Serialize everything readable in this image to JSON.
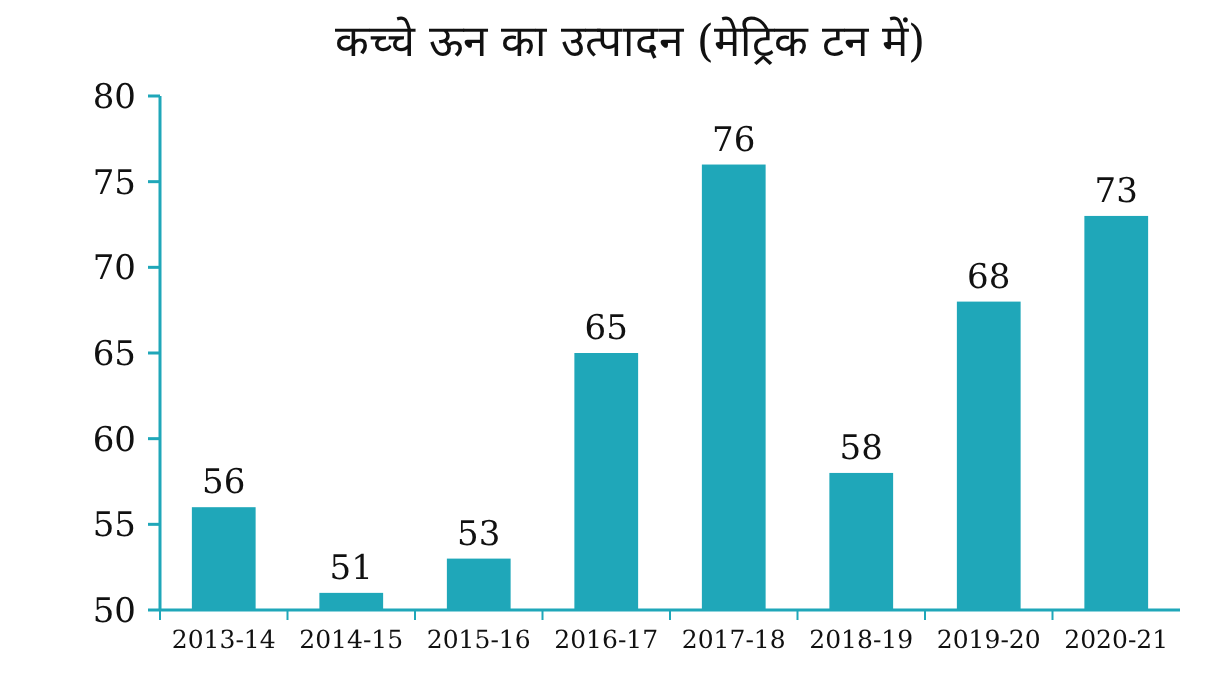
{
  "chart_data": {
    "type": "bar",
    "title": "कच्चे ऊन का उत्पादन (मेट्रिक टन में)",
    "categories": [
      "2013-14",
      "2014-15",
      "2015-16",
      "2016-17",
      "2017-18",
      "2018-19",
      "2019-20",
      "2020-21"
    ],
    "values": [
      56,
      51,
      53,
      65,
      76,
      58,
      68,
      73
    ],
    "color": "#1fa7b9",
    "ylim": [
      50,
      80
    ],
    "yticks": [
      50,
      55,
      60,
      65,
      70,
      75,
      80
    ],
    "data_labels": true
  }
}
